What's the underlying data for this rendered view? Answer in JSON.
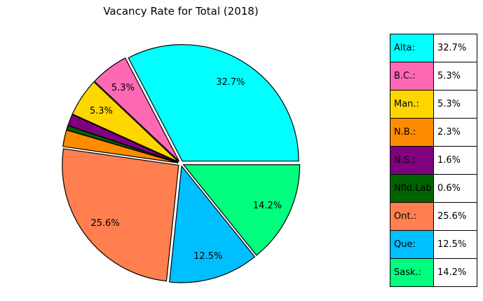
{
  "chart_data": {
    "type": "pie",
    "title": "Vacancy Rate for Total  (2018)",
    "slices": [
      {
        "label": "Alta:",
        "value": 32.7,
        "display": "32.7%",
        "color": "#00FFFF"
      },
      {
        "label": "B.C.:",
        "value": 5.3,
        "display": "5.3%",
        "color": "#FF69B4"
      },
      {
        "label": "Man.:",
        "value": 5.3,
        "display": "5.3%",
        "color": "#FFD700"
      },
      {
        "label": "N.B.:",
        "value": 2.3,
        "display": "2.3%",
        "color": "#FF8C00"
      },
      {
        "label": "N.S.:",
        "value": 1.6,
        "display": "1.6%",
        "color": "#800080"
      },
      {
        "label": "Nfld.Lab",
        "value": 0.6,
        "display": "0.6%",
        "color": "#006400"
      },
      {
        "label": "Ont.:",
        "value": 25.6,
        "display": "25.6%",
        "color": "#FF7F50"
      },
      {
        "label": "Que:",
        "value": 12.5,
        "display": "12.5%",
        "color": "#00BFFF"
      },
      {
        "label": "Sask.:",
        "value": 14.2,
        "display": "14.2%",
        "color": "#00FF7F"
      }
    ],
    "legend_position": "right (table)"
  }
}
